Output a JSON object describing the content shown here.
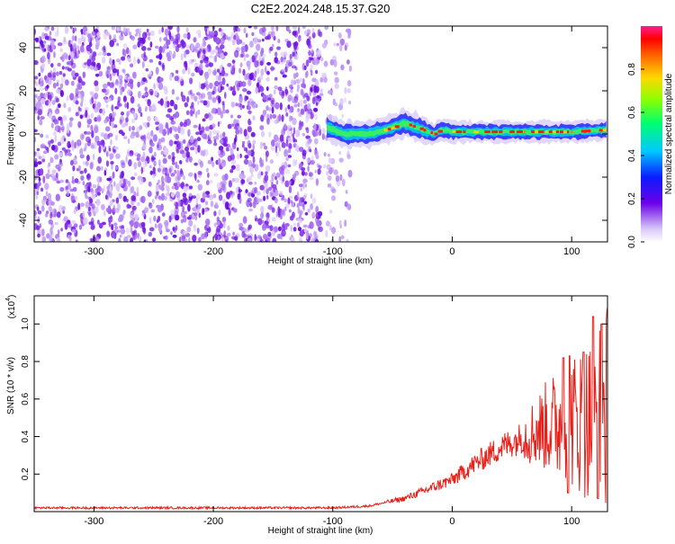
{
  "title": "C2E2.2024.248.15.37.G20",
  "chart_data": [
    {
      "type": "heatmap",
      "xlabel": "Height of straight line (km)",
      "ylabel": "Frequency (Hz)",
      "xlim": [
        -350,
        130
      ],
      "ylim": [
        -50,
        50
      ],
      "x_ticks": [
        -300,
        -200,
        -100,
        0,
        100
      ],
      "y_ticks": [
        -40,
        -20,
        0,
        20,
        40
      ],
      "colorbar": {
        "label": "Normalized spectral amplitude",
        "range": [
          0,
          1
        ],
        "ticks": [
          "0.0",
          "0.2",
          "0.4",
          "0.6",
          "0.8"
        ]
      },
      "band": {
        "x_start": -105,
        "x_end": 130,
        "center_freq": [
          {
            "x": -105,
            "y": 3
          },
          {
            "x": -90,
            "y": 0
          },
          {
            "x": -70,
            "y": 0
          },
          {
            "x": -55,
            "y": 2
          },
          {
            "x": -40,
            "y": 5
          },
          {
            "x": -25,
            "y": 2
          },
          {
            "x": -15,
            "y": 0
          },
          {
            "x": -10,
            "y": 2
          },
          {
            "x": 0,
            "y": 1
          },
          {
            "x": 50,
            "y": 1
          },
          {
            "x": 100,
            "y": 1
          },
          {
            "x": 130,
            "y": 2
          }
        ]
      },
      "grid": false
    },
    {
      "type": "line",
      "xlabel": "Height of straight line (km)",
      "ylabel": "SNR (10 * v/v)",
      "yscale_label": "(x10",
      "yscale_exp": "4",
      "xlim": [
        -350,
        130
      ],
      "ylim": [
        0,
        1.15
      ],
      "x_ticks": [
        -300,
        -200,
        -100,
        0,
        100
      ],
      "y_ticks": [
        "0.2",
        "0.4",
        "0.6",
        "0.8",
        "1.0"
      ],
      "series": [
        {
          "color": "#e8201a",
          "trend": [
            {
              "x": -350,
              "y": 0.02
            },
            {
              "x": -100,
              "y": 0.02
            },
            {
              "x": -70,
              "y": 0.03
            },
            {
              "x": -40,
              "y": 0.07
            },
            {
              "x": -20,
              "y": 0.12
            },
            {
              "x": 0,
              "y": 0.17
            },
            {
              "x": 20,
              "y": 0.26
            },
            {
              "x": 40,
              "y": 0.34
            },
            {
              "x": 60,
              "y": 0.4
            },
            {
              "x": 80,
              "y": 0.46
            },
            {
              "x": 100,
              "y": 0.48
            },
            {
              "x": 120,
              "y": 0.5
            },
            {
              "x": 130,
              "y": 0.55
            }
          ],
          "peaks": [
            {
              "x": 93,
              "y": 0.82
            },
            {
              "x": 98,
              "y": 0.83
            },
            {
              "x": 110,
              "y": 0.85
            },
            {
              "x": 118,
              "y": 1.04
            },
            {
              "x": 122,
              "y": 1.13
            },
            {
              "x": 125,
              "y": 1.0
            }
          ],
          "dips": [
            {
              "x": 97,
              "y": 0.1
            },
            {
              "x": 122,
              "y": 0.07
            }
          ]
        }
      ],
      "grid": false
    }
  ]
}
